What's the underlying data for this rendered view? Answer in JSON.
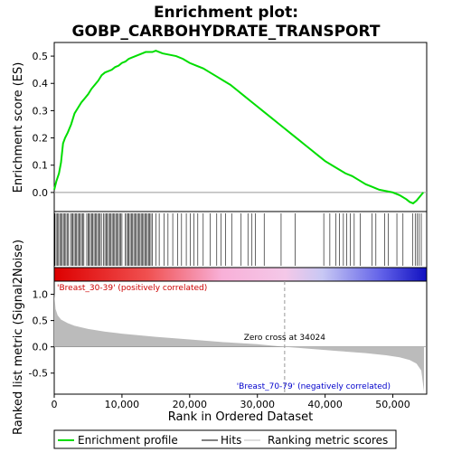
{
  "chart_data": {
    "type": "line",
    "title_line1": "Enrichment plot:",
    "title_line2": "GOBP_CARBOHYDRATE_TRANSPORT",
    "es_ylabel": "Enrichment score (ES)",
    "metric_ylabel": "Ranked list metric (Signal2Noise)",
    "xlabel": "Rank in Ordered Dataset",
    "xlim": [
      0,
      55000
    ],
    "es_ylim": [
      -0.07,
      0.55
    ],
    "metric_ylim": [
      -0.9,
      1.25
    ],
    "x_ticks": [
      0,
      10000,
      20000,
      30000,
      40000,
      50000
    ],
    "x_tick_labels": [
      "0",
      "10,000",
      "20,000",
      "30,000",
      "40,000",
      "50,000"
    ],
    "es_ticks": [
      0.0,
      0.1,
      0.2,
      0.3,
      0.4,
      0.5
    ],
    "es_tick_labels": [
      "0.0",
      "0.1",
      "0.2",
      "0.3",
      "0.4",
      "0.5"
    ],
    "metric_ticks": [
      -0.5,
      0.0,
      0.5,
      1.0
    ],
    "metric_tick_labels": [
      "-0.5",
      "0.0",
      "0.5",
      "1.0"
    ],
    "es_profile": {
      "x": [
        0,
        300,
        700,
        1000,
        1300,
        1600,
        2000,
        2500,
        3000,
        3500,
        4000,
        4500,
        5000,
        5500,
        6000,
        6500,
        7000,
        7500,
        8000,
        8500,
        9000,
        9500,
        10000,
        10500,
        11000,
        11500,
        12000,
        12500,
        13000,
        13500,
        14000,
        14500,
        15000,
        15500,
        16000,
        17000,
        18000,
        19000,
        20000,
        21000,
        22000,
        23000,
        24000,
        25000,
        26000,
        27000,
        28000,
        29000,
        30000,
        31000,
        32000,
        33000,
        34000,
        35000,
        36000,
        37000,
        38000,
        39000,
        40000,
        41000,
        42000,
        43000,
        44000,
        45000,
        46000,
        47000,
        48000,
        49000,
        50000,
        51000,
        52000,
        52500,
        53000,
        53500,
        54000,
        54500
      ],
      "y": [
        0.01,
        0.04,
        0.07,
        0.11,
        0.18,
        0.2,
        0.22,
        0.25,
        0.29,
        0.31,
        0.33,
        0.345,
        0.36,
        0.38,
        0.395,
        0.41,
        0.43,
        0.44,
        0.445,
        0.45,
        0.46,
        0.465,
        0.475,
        0.48,
        0.49,
        0.495,
        0.5,
        0.505,
        0.51,
        0.515,
        0.515,
        0.515,
        0.52,
        0.515,
        0.51,
        0.505,
        0.5,
        0.49,
        0.475,
        0.465,
        0.455,
        0.44,
        0.425,
        0.41,
        0.395,
        0.375,
        0.355,
        0.335,
        0.315,
        0.295,
        0.275,
        0.255,
        0.235,
        0.215,
        0.195,
        0.175,
        0.155,
        0.135,
        0.115,
        0.1,
        0.085,
        0.07,
        0.06,
        0.045,
        0.03,
        0.02,
        0.01,
        0.005,
        0.0,
        -0.01,
        -0.025,
        -0.035,
        -0.04,
        -0.03,
        -0.015,
        0.0
      ]
    },
    "metric_curve": {
      "x": [
        0,
        200,
        500,
        1000,
        2000,
        3000,
        5000,
        7500,
        10000,
        15000,
        20000,
        25000,
        30000,
        34024,
        38000,
        42000,
        46000,
        49000,
        51000,
        52500,
        53500,
        54200,
        54600
      ],
      "y": [
        1.02,
        0.72,
        0.6,
        0.52,
        0.45,
        0.4,
        0.34,
        0.29,
        0.25,
        0.19,
        0.14,
        0.09,
        0.05,
        0.0,
        -0.04,
        -0.08,
        -0.12,
        -0.16,
        -0.2,
        -0.25,
        -0.32,
        -0.45,
        -0.85
      ]
    },
    "hits_dense_ranges": [
      [
        100,
        2200
      ],
      [
        2400,
        4500
      ],
      [
        4800,
        7000
      ],
      [
        7300,
        10000
      ],
      [
        10500,
        14500
      ]
    ],
    "hits_sparse": [
      15000,
      15500,
      16200,
      16800,
      17500,
      18200,
      18800,
      19500,
      20100,
      20600,
      21200,
      22000,
      23000,
      24000,
      24600,
      25300,
      26200,
      27600,
      28600,
      29200,
      29700,
      31000,
      33500,
      35600,
      39800,
      40700,
      41600,
      42100,
      42700,
      43200,
      43700,
      44300,
      45200,
      46900,
      47500,
      48800,
      49300,
      50600,
      51500,
      52900,
      53300,
      53600,
      53900,
      54200
    ],
    "positive_label": "'Breast_30-39' (positively correlated)",
    "negative_label": "'Breast_70-79' (negatively correlated)",
    "zero_cross_label": "Zero cross at 34024",
    "zero_cross_rank": 34024,
    "legend": [
      {
        "label": "Enrichment profile",
        "color": "#00dd00"
      },
      {
        "label": "Hits",
        "color": "#000000"
      },
      {
        "label": "Ranking metric scores",
        "color": "#bbbbbb"
      }
    ],
    "colors": {
      "profile": "#00dd00",
      "hits": "#000000",
      "metric_fill": "#bbbbbb",
      "positive_label": "#cc0000",
      "negative_label": "#0000cc"
    }
  }
}
